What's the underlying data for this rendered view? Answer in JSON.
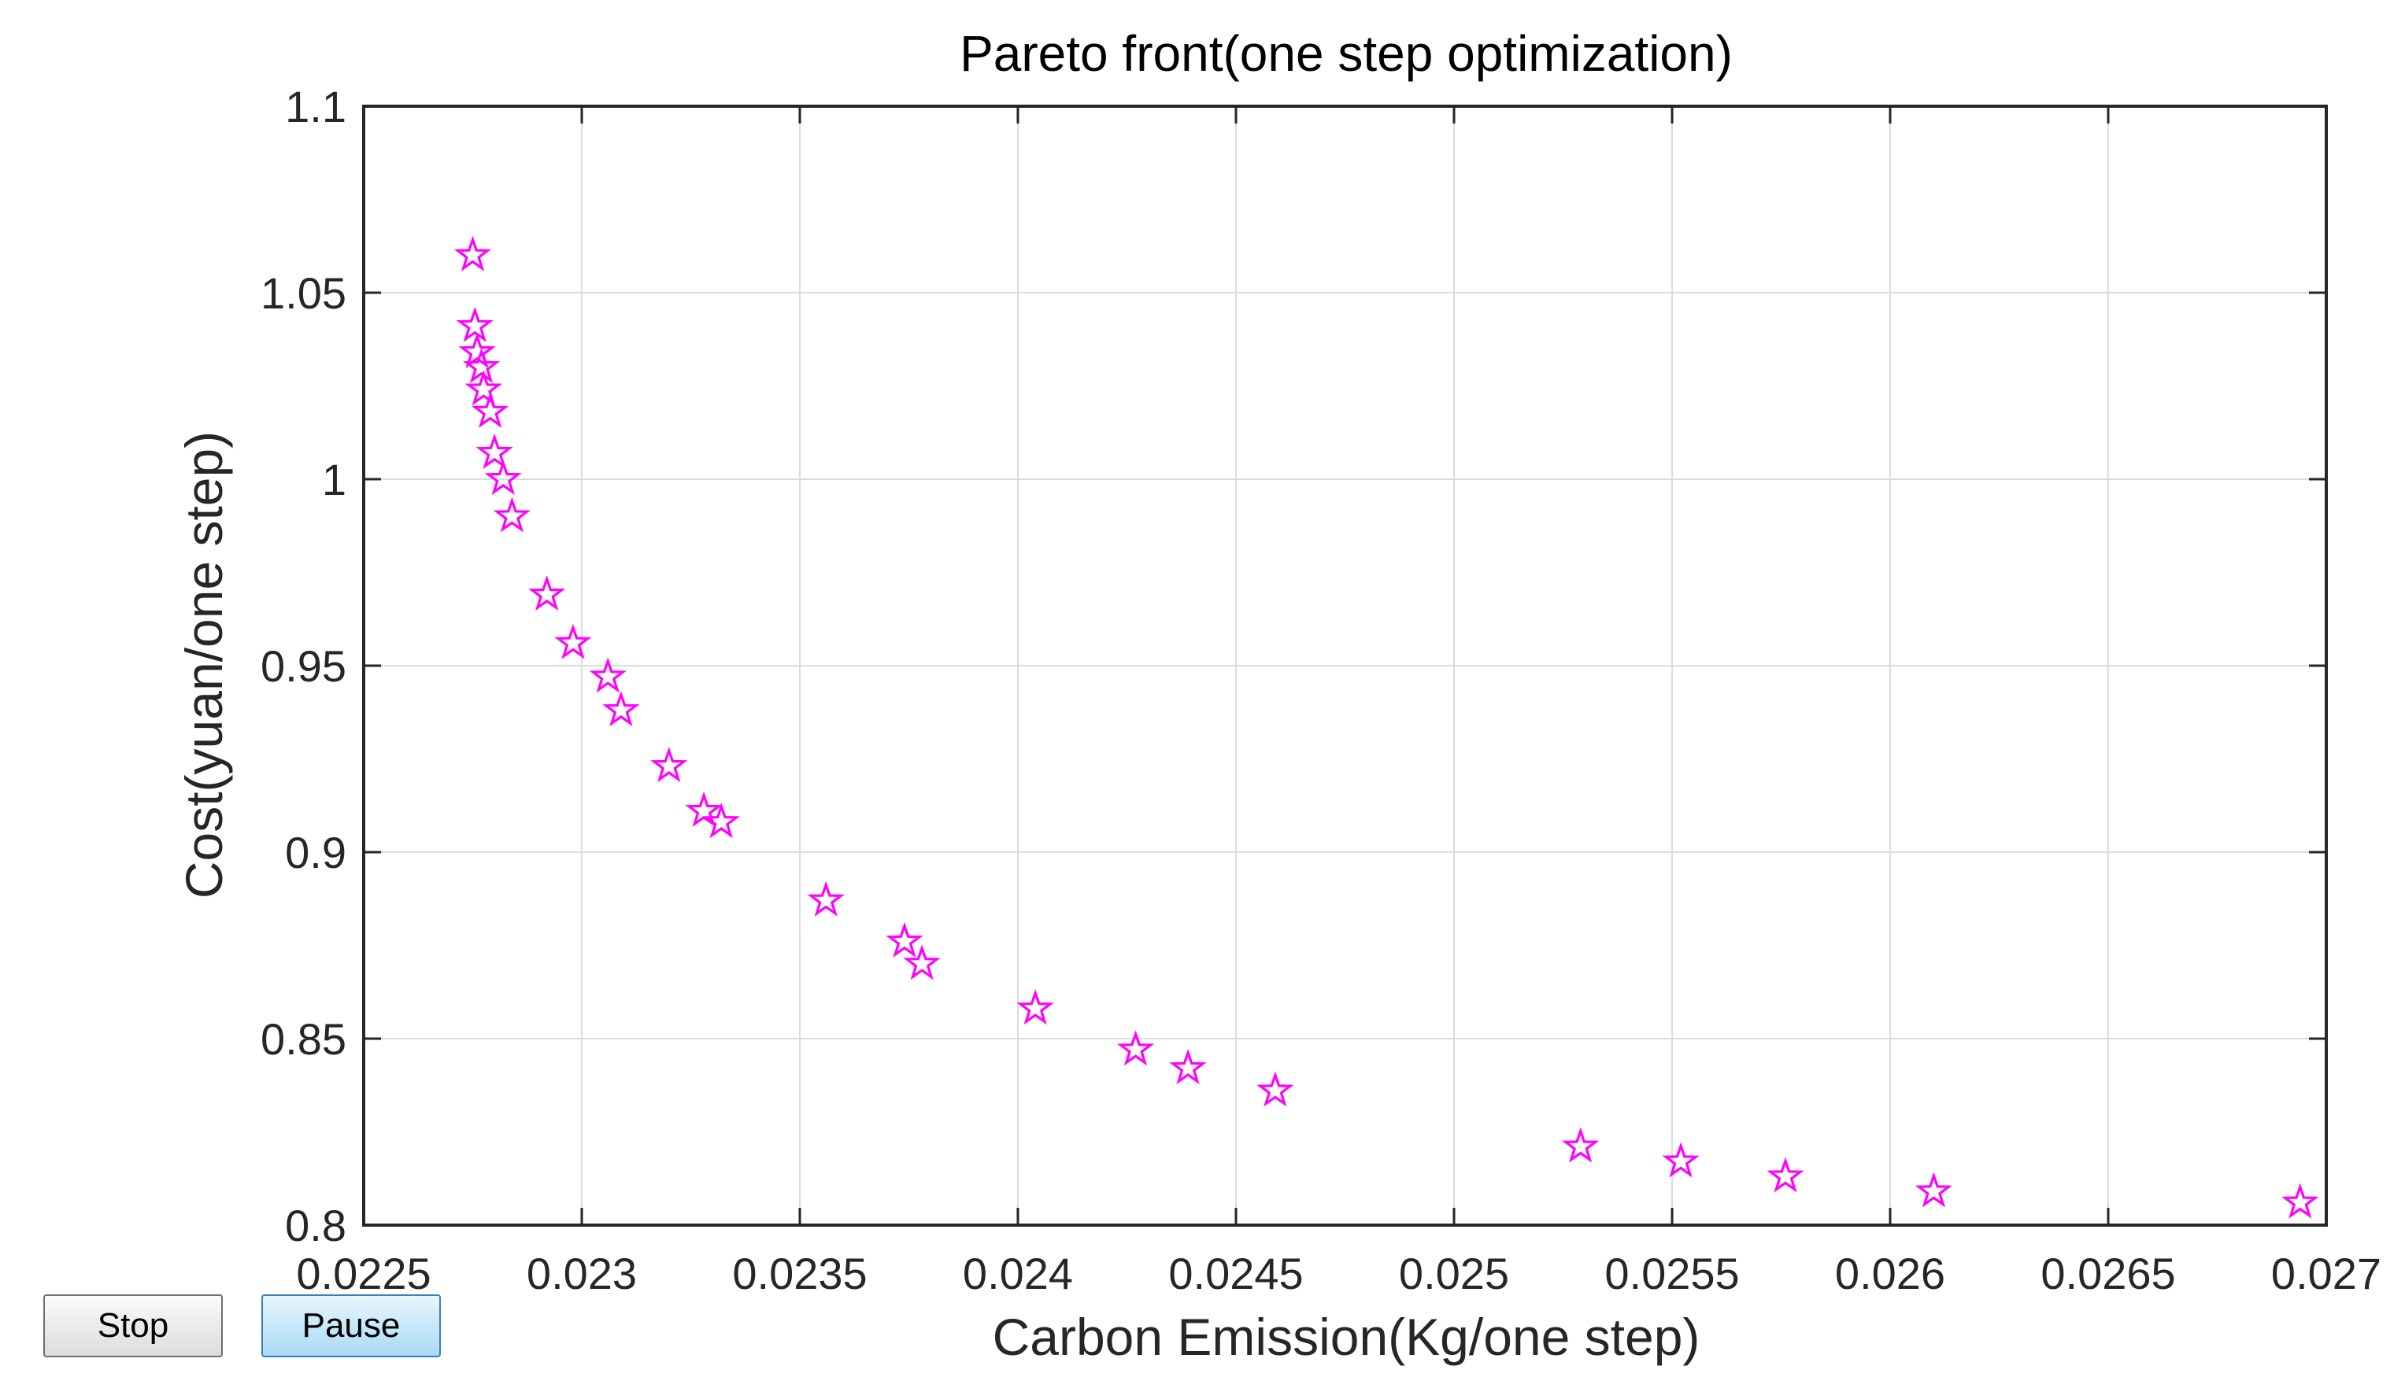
{
  "chart_data": {
    "type": "scatter",
    "title": "Pareto front(one step optimization)",
    "xlabel": "Carbon Emission(Kg/one step)",
    "ylabel": "Cost(yuan/one step)",
    "xlim": [
      0.0225,
      0.027
    ],
    "ylim": [
      0.8,
      1.1
    ],
    "xticks": [
      0.0225,
      0.023,
      0.0235,
      0.024,
      0.0245,
      0.025,
      0.0255,
      0.026,
      0.0265,
      0.027
    ],
    "xtick_labels": [
      "0.0225",
      "0.023",
      "0.0235",
      "0.024",
      "0.0245",
      "0.025",
      "0.0255",
      "0.026",
      "0.0265",
      "0.027"
    ],
    "yticks": [
      0.8,
      0.85,
      0.9,
      0.95,
      1.0,
      1.05,
      1.1
    ],
    "ytick_labels": [
      "0.8",
      "0.85",
      "0.9",
      "0.95",
      "1",
      "1.05",
      "1.1"
    ],
    "grid": true,
    "marker": "pentagram",
    "marker_color": "#ff00ff",
    "series": [
      {
        "name": "Pareto front",
        "x": [
          0.02275,
          0.022755,
          0.02276,
          0.02277,
          0.022775,
          0.02279,
          0.0228,
          0.02282,
          0.02284,
          0.02292,
          0.02298,
          0.02306,
          0.02309,
          0.0232,
          0.02328,
          0.02332,
          0.02356,
          0.02374,
          0.02378,
          0.02404,
          0.02427,
          0.02439,
          0.02459,
          0.02529,
          0.02552,
          0.02576,
          0.0261,
          0.02694
        ],
        "y": [
          1.06,
          1.041,
          1.034,
          1.03,
          1.024,
          1.018,
          1.007,
          1.0,
          0.99,
          0.969,
          0.956,
          0.947,
          0.938,
          0.923,
          0.911,
          0.908,
          0.887,
          0.876,
          0.87,
          0.858,
          0.847,
          0.842,
          0.836,
          0.821,
          0.817,
          0.813,
          0.809,
          0.806
        ]
      }
    ]
  },
  "controls": {
    "stop_label": "Stop",
    "pause_label": "Pause"
  }
}
